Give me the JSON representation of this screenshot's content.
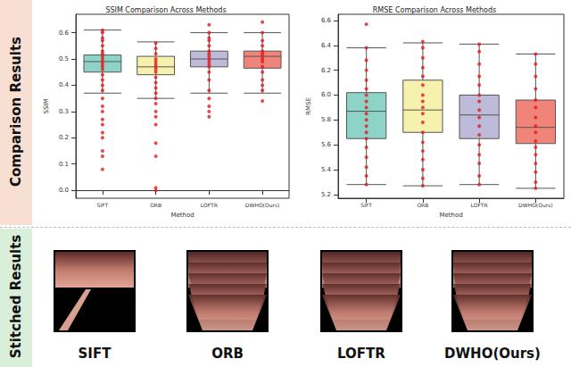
{
  "figure": {
    "row_labels": [
      "Comparison Results",
      "Stitched Results"
    ],
    "image_labels": [
      "SIFT",
      "ORB",
      "LOFTR",
      "DWHO(Ours)"
    ]
  },
  "chart_data": [
    {
      "type": "boxplot",
      "title": "SSIM Comparison Across Methods",
      "x_label": "Method",
      "y_label": "SSIM",
      "categories": [
        "SIFT",
        "ORB",
        "LOFTR",
        "DWHO(Ours)"
      ],
      "ylim": [
        -0.03,
        0.67
      ],
      "yticks": [
        {
          "value": 0,
          "label": "0.0"
        },
        0.1,
        0.2,
        0.3,
        0.4,
        0.5,
        0.6
      ],
      "grid": false,
      "series": [
        {
          "type": "boxplot",
          "colors": [
            "#8dd3c7",
            "#f6f2ad",
            "#bebada",
            "#f08478"
          ],
          "values": [
            [
              0.37,
              0.45,
              0.49,
              0.515,
              0.61
            ],
            [
              0.35,
              0.44,
              0.47,
              0.51,
              0.565
            ],
            [
              0.37,
              0.47,
              0.5,
              0.53,
              0.6
            ],
            [
              0.37,
              0.465,
              0.51,
              0.53,
              0.6
            ]
          ]
        },
        {
          "type": "scatter",
          "color": "#e41a1c",
          "marker": "circle",
          "values": [
            [
              0.08,
              0.13,
              0.15,
              0.2,
              0.22,
              0.25,
              0.27,
              0.3,
              0.32,
              0.35,
              0.38,
              0.4,
              0.42,
              0.44,
              0.46,
              0.47,
              0.48,
              0.49,
              0.5,
              0.51,
              0.52,
              0.53,
              0.55,
              0.57,
              0.58,
              0.6,
              0.61
            ],
            [
              0.0,
              0.01,
              0.13,
              0.18,
              0.25,
              0.28,
              0.3,
              0.33,
              0.35,
              0.37,
              0.39,
              0.41,
              0.43,
              0.45,
              0.46,
              0.47,
              0.48,
              0.49,
              0.5,
              0.52,
              0.54,
              0.56
            ],
            [
              0.28,
              0.3,
              0.32,
              0.35,
              0.38,
              0.42,
              0.45,
              0.47,
              0.48,
              0.49,
              0.5,
              0.51,
              0.52,
              0.53,
              0.55,
              0.57,
              0.58,
              0.6,
              0.63
            ],
            [
              0.34,
              0.38,
              0.4,
              0.42,
              0.45,
              0.47,
              0.49,
              0.5,
              0.51,
              0.52,
              0.53,
              0.55,
              0.57,
              0.6,
              0.64
            ]
          ]
        }
      ]
    },
    {
      "type": "boxplot",
      "title": "RMSE Comparison Across Methods",
      "x_label": "Method",
      "y_label": "RMSE",
      "categories": [
        "SIFT",
        "ORB",
        "LOFTR",
        "DWHO(Ours)"
      ],
      "ylim": [
        5.17,
        6.65
      ],
      "yticks": [
        5.2,
        5.4,
        5.6,
        5.8,
        {
          "value": 6,
          "label": "6.0"
        },
        6.2,
        6.4,
        6.6
      ],
      "grid": false,
      "series": [
        {
          "type": "boxplot",
          "colors": [
            "#8dd3c7",
            "#f6f2ad",
            "#bebada",
            "#f08478"
          ],
          "values": [
            [
              5.28,
              5.65,
              5.87,
              6.02,
              6.38
            ],
            [
              5.27,
              5.7,
              5.88,
              6.12,
              6.42
            ],
            [
              5.28,
              5.65,
              5.84,
              6.0,
              6.41
            ],
            [
              5.25,
              5.61,
              5.74,
              5.96,
              6.33
            ]
          ]
        },
        {
          "type": "scatter",
          "color": "#e41a1c",
          "marker": "circle",
          "values": [
            [
              5.28,
              5.35,
              5.42,
              5.5,
              5.58,
              5.65,
              5.7,
              5.75,
              5.8,
              5.85,
              5.9,
              5.95,
              6.0,
              6.05,
              6.12,
              6.2,
              6.28,
              6.38,
              6.57
            ],
            [
              5.27,
              5.33,
              5.4,
              5.48,
              5.55,
              5.62,
              5.7,
              5.78,
              5.85,
              5.9,
              5.95,
              6.0,
              6.08,
              6.15,
              6.22,
              6.3,
              6.38,
              6.43
            ],
            [
              5.28,
              5.35,
              5.45,
              5.52,
              5.6,
              5.68,
              5.75,
              5.82,
              5.88,
              5.95,
              6.0,
              6.08,
              6.15,
              6.25,
              6.35,
              6.41
            ],
            [
              5.25,
              5.3,
              5.38,
              5.45,
              5.52,
              5.58,
              5.63,
              5.7,
              5.75,
              5.82,
              5.9,
              5.96,
              6.05,
              6.15,
              6.25,
              6.33
            ]
          ]
        }
      ]
    }
  ]
}
